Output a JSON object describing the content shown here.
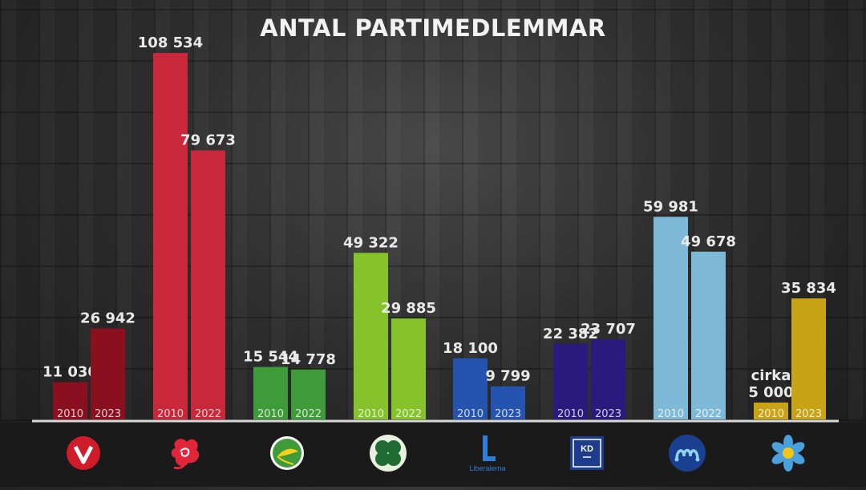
{
  "title": "ANTAL PARTIMEDLEMMAR",
  "chart_data": {
    "type": "bar",
    "title": "ANTAL PARTIMEDLEMMAR",
    "ylim": [
      0,
      115000
    ],
    "grid": false,
    "groups": [
      {
        "logo": "v-logo",
        "color": "#8a1020",
        "bars": [
          {
            "year": "2010",
            "value": 11030,
            "label": "11 030"
          },
          {
            "year": "2023",
            "value": 26942,
            "label": "26 942"
          }
        ]
      },
      {
        "logo": "s-rose-logo",
        "color": "#c9283a",
        "bars": [
          {
            "year": "2010",
            "value": 108534,
            "label": "108 534"
          },
          {
            "year": "2022",
            "value": 79673,
            "label": "79 673"
          }
        ]
      },
      {
        "logo": "mp-dandelion-logo",
        "color": "#3f9a3a",
        "bars": [
          {
            "year": "2010",
            "value": 15544,
            "label": "15 544"
          },
          {
            "year": "2022",
            "value": 14778,
            "label": "14 778"
          }
        ]
      },
      {
        "logo": "c-clover-logo",
        "color": "#86c32b",
        "bars": [
          {
            "year": "2010",
            "value": 49322,
            "label": "49 322"
          },
          {
            "year": "2022",
            "value": 29885,
            "label": "29 885"
          }
        ]
      },
      {
        "logo": "l-liberalerna-logo",
        "color": "#2453b0",
        "bars": [
          {
            "year": "2010",
            "value": 18100,
            "label": "18 100"
          },
          {
            "year": "2023",
            "value": 9799,
            "label": "9 799"
          }
        ]
      },
      {
        "logo": "kd-logo",
        "color": "#2b1a7e",
        "bars": [
          {
            "year": "2010",
            "value": 22382,
            "label": "22 382"
          },
          {
            "year": "2023",
            "value": 23707,
            "label": "23 707"
          }
        ]
      },
      {
        "logo": "m-logo",
        "color": "#7fb9d8",
        "bars": [
          {
            "year": "2010",
            "value": 59981,
            "label": "59 981"
          },
          {
            "year": "2022",
            "value": 49678,
            "label": "49 678"
          }
        ]
      },
      {
        "logo": "sd-flower-logo",
        "color": "#c9a316",
        "bars": [
          {
            "year": "2010",
            "value": 5000,
            "label": "5 000",
            "prefix": "cirka"
          },
          {
            "year": "2023",
            "value": 35834,
            "label": "35 834"
          }
        ]
      }
    ]
  },
  "logos": {
    "liberalerna_text": "Liberalerna",
    "kd_text": "KD"
  }
}
